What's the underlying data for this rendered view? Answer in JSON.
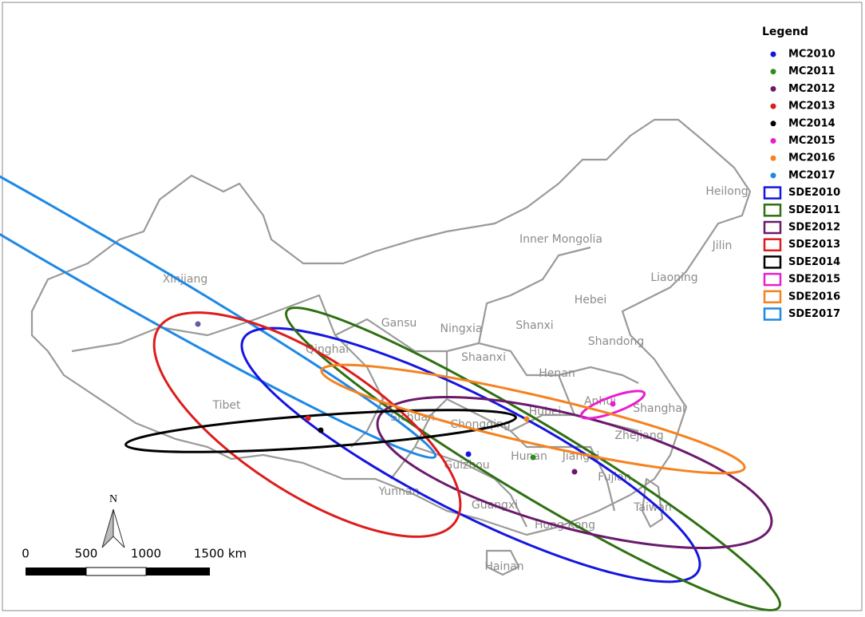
{
  "legend": {
    "title": "Legend",
    "items": [
      {
        "name": "MC2010",
        "color": "#1515e0",
        "kind": "point"
      },
      {
        "name": "MC2011",
        "color": "#2e8b1e",
        "kind": "point"
      },
      {
        "name": "MC2012",
        "color": "#6b1a6b",
        "kind": "point"
      },
      {
        "name": "MC2013",
        "color": "#dd1c1c",
        "kind": "point"
      },
      {
        "name": "MC2014",
        "color": "#000000",
        "kind": "point"
      },
      {
        "name": "MC2015",
        "color": "#e81fd0",
        "kind": "point"
      },
      {
        "name": "MC2016",
        "color": "#f58220",
        "kind": "point"
      },
      {
        "name": "MC2017",
        "color": "#1e88e5",
        "kind": "point"
      },
      {
        "name": "SDE2010",
        "color": "#1515e0",
        "kind": "ellipse"
      },
      {
        "name": "SDE2011",
        "color": "#2e7012",
        "kind": "ellipse"
      },
      {
        "name": "SDE2012",
        "color": "#6b1a6b",
        "kind": "ellipse"
      },
      {
        "name": "SDE2013",
        "color": "#dd1c1c",
        "kind": "ellipse"
      },
      {
        "name": "SDE2014",
        "color": "#000000",
        "kind": "ellipse"
      },
      {
        "name": "SDE2015",
        "color": "#e81fd0",
        "kind": "ellipse"
      },
      {
        "name": "SDE2016",
        "color": "#f58220",
        "kind": "ellipse"
      },
      {
        "name": "SDE2017",
        "color": "#1e88e5",
        "kind": "ellipse"
      }
    ]
  },
  "regions": [
    "Xinjiang",
    "Tibet",
    "Qinghai",
    "Gansu",
    "Ningxia",
    "Shaanxi",
    "Shanxi",
    "Hebei",
    "Inner Mongolia",
    "Heilong",
    "Jilin",
    "Liaoning",
    "Shandong",
    "Henan",
    "Anhui",
    "Shanghai",
    "Hubei",
    "Sichuan",
    "Chongqing",
    "Zhejiang",
    "Hunan",
    "Jiangxi",
    "Guizhou",
    "Yunnan",
    "Fujian",
    "Guangxi",
    "Hong Kong",
    "Taiwan",
    "Hainan"
  ],
  "north": "N",
  "scale": [
    "0",
    "500",
    "1000",
    "1500 km"
  ]
}
